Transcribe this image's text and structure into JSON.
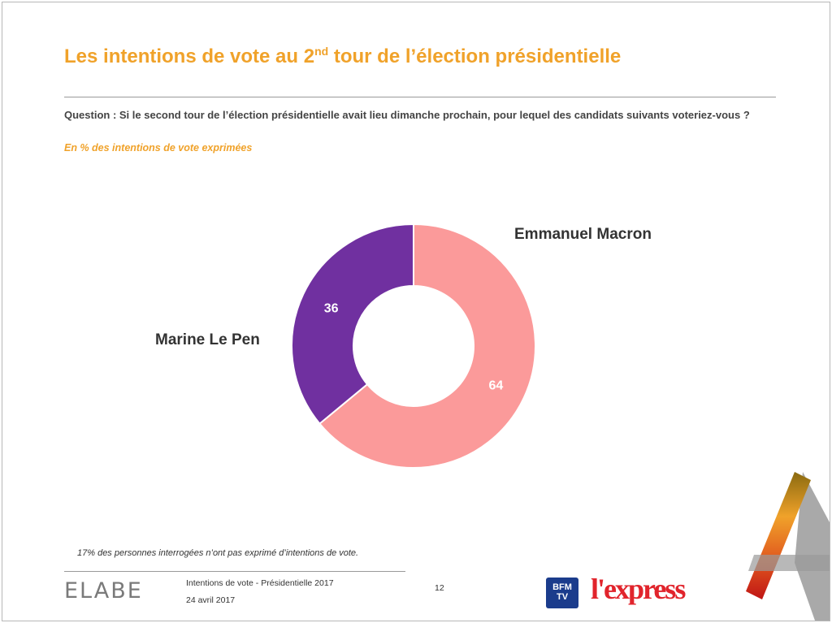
{
  "slide": {
    "title_main": "Les intentions de vote au 2",
    "title_sup": "nd",
    "title_rest": " tour de l’élection présidentielle",
    "question": "Question : Si le second tour de l’élection présidentielle avait lieu dimanche prochain, pour lequel des candidats suivants voteriez-vous ?",
    "unit_note": "En %  des intentions de vote exprimées",
    "footnote": "17% des personnes interrogées n’ont pas exprimé d’intentions de vote.",
    "footer_title": "Intentions de vote - Présidentielle 2017",
    "footer_date": "24 avril 2017",
    "page_number": "12",
    "logo_elabe": "ELABE",
    "logo_bfm": "BFM TV",
    "logo_lexpress": "l'express"
  },
  "colors": {
    "accent_orange": "#f0a22a",
    "macron": "#fb9a9a",
    "le_pen": "#7030a0"
  },
  "chart_data": {
    "type": "pie",
    "donut": true,
    "unit": "%",
    "slices": [
      {
        "name": "Emmanuel Macron",
        "value": 64,
        "color": "#fb9a9a"
      },
      {
        "name": "Marine Le Pen",
        "value": 36,
        "color": "#7030a0"
      }
    ],
    "legend": "none",
    "labels": "outside-names"
  }
}
